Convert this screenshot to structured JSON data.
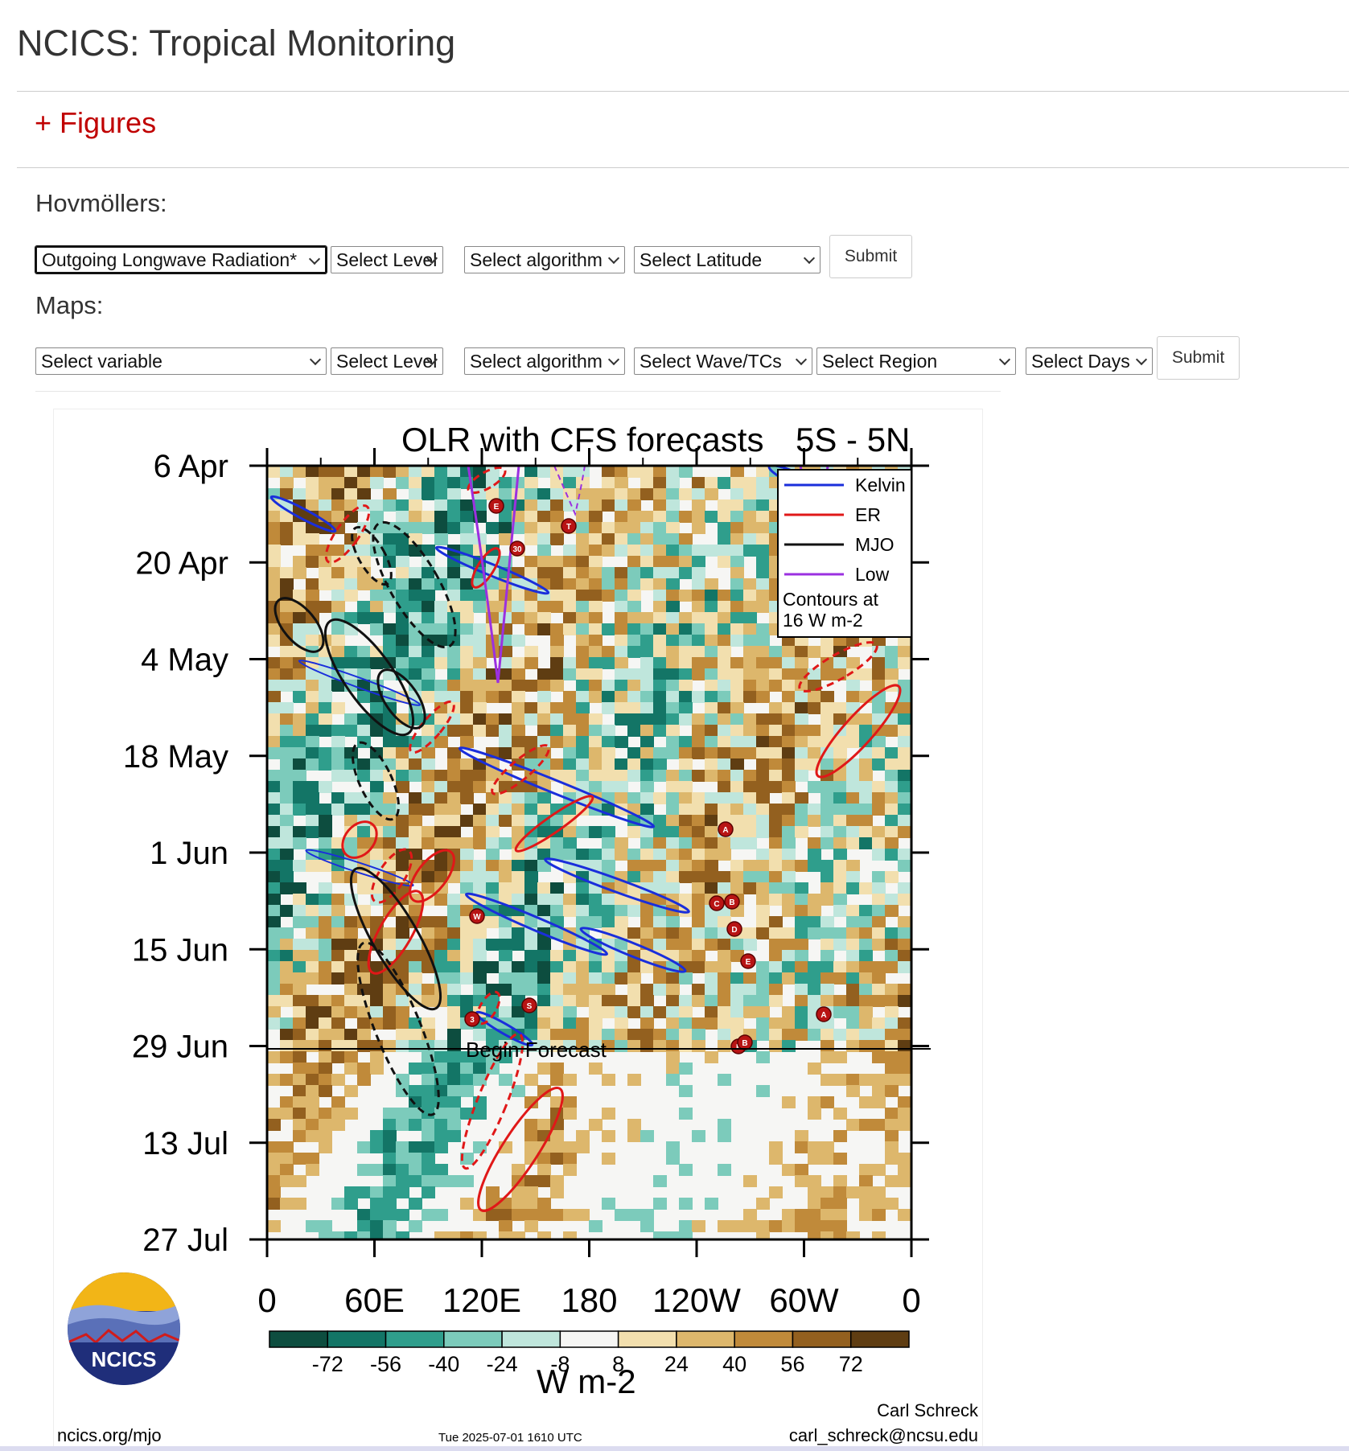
{
  "page": {
    "title": "NCICS: Tropical Monitoring"
  },
  "figures_link": "+ Figures",
  "hovmollers": {
    "label": "Hovmöllers:",
    "variable": "Outgoing Longwave Radiation*",
    "level": "Select Level",
    "algorithm": "Select algorithm",
    "latitude": "Select Latitude",
    "submit": "Submit"
  },
  "maps": {
    "label": "Maps:",
    "variable": "Select variable",
    "level": "Select Level",
    "algorithm": "Select algorithm",
    "wave": "Select Wave/TCs",
    "region": "Select Region",
    "days": "Select Days",
    "submit": "Submit"
  },
  "chart_data": {
    "type": "heatmap",
    "title": "OLR with CFS forecasts",
    "region_label": "5S - 5N",
    "y_ticks": [
      "6 Apr",
      "20 Apr",
      "4 May",
      "18 May",
      "1 Jun",
      "15 Jun",
      "29 Jun",
      "13 Jul",
      "27 Jul"
    ],
    "x_ticks": [
      "0",
      "60E",
      "120E",
      "180",
      "120W",
      "60W",
      "0"
    ],
    "legend": [
      {
        "name": "Kelvin",
        "color": "#1a2edb"
      },
      {
        "name": "ER",
        "color": "#e01818"
      },
      {
        "name": "MJO",
        "color": "#111111"
      },
      {
        "name": "Low",
        "color": "#9b30e0"
      }
    ],
    "contour_note_1": "Contours at",
    "contour_note_2": "16 W m-2",
    "forecast_label": "Begin Forecast",
    "forecast_start": "29 Jun",
    "colorbar": {
      "labels": [
        "-72",
        "-56",
        "-40",
        "-24",
        "-8",
        "8",
        "24",
        "40",
        "56",
        "72"
      ],
      "colors": [
        "#0d4d3f",
        "#137566",
        "#2f9e8c",
        "#7ccbbb",
        "#bfe6dc",
        "#f6f6f4",
        "#f2dfae",
        "#ddb76c",
        "#c08a3a",
        "#93601f",
        "#5f3d12"
      ],
      "unit": "W m-2"
    },
    "tc_markers": [
      "E",
      "T",
      "30",
      "A",
      "C",
      "B",
      "D",
      "E",
      "W",
      "S",
      "3",
      "A",
      "F",
      "B"
    ]
  },
  "footer": {
    "logo_text": "NCICS",
    "site": "ncics.org/mjo",
    "timestamp": "Tue 2025-07-01 1610 UTC",
    "author": "Carl Schreck",
    "email": "carl_schreck@ncsu.edu"
  }
}
